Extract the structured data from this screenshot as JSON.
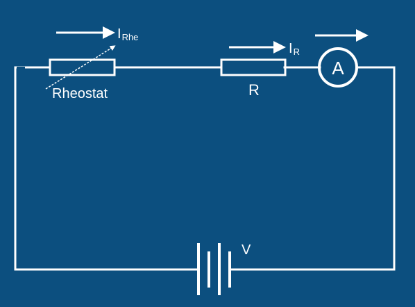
{
  "colors": {
    "background": "#0c4f7f",
    "stroke": "#ffffff"
  },
  "labels": {
    "current_rheostat_main": "I",
    "current_rheostat_sub": "Rhe",
    "current_resistor_main": "I",
    "current_resistor_sub": "R",
    "rheostat": "Rheostat",
    "resistor": "R",
    "ammeter": "A",
    "voltage": "V"
  },
  "icons": {
    "current_arrow": "right-arrow-icon"
  }
}
